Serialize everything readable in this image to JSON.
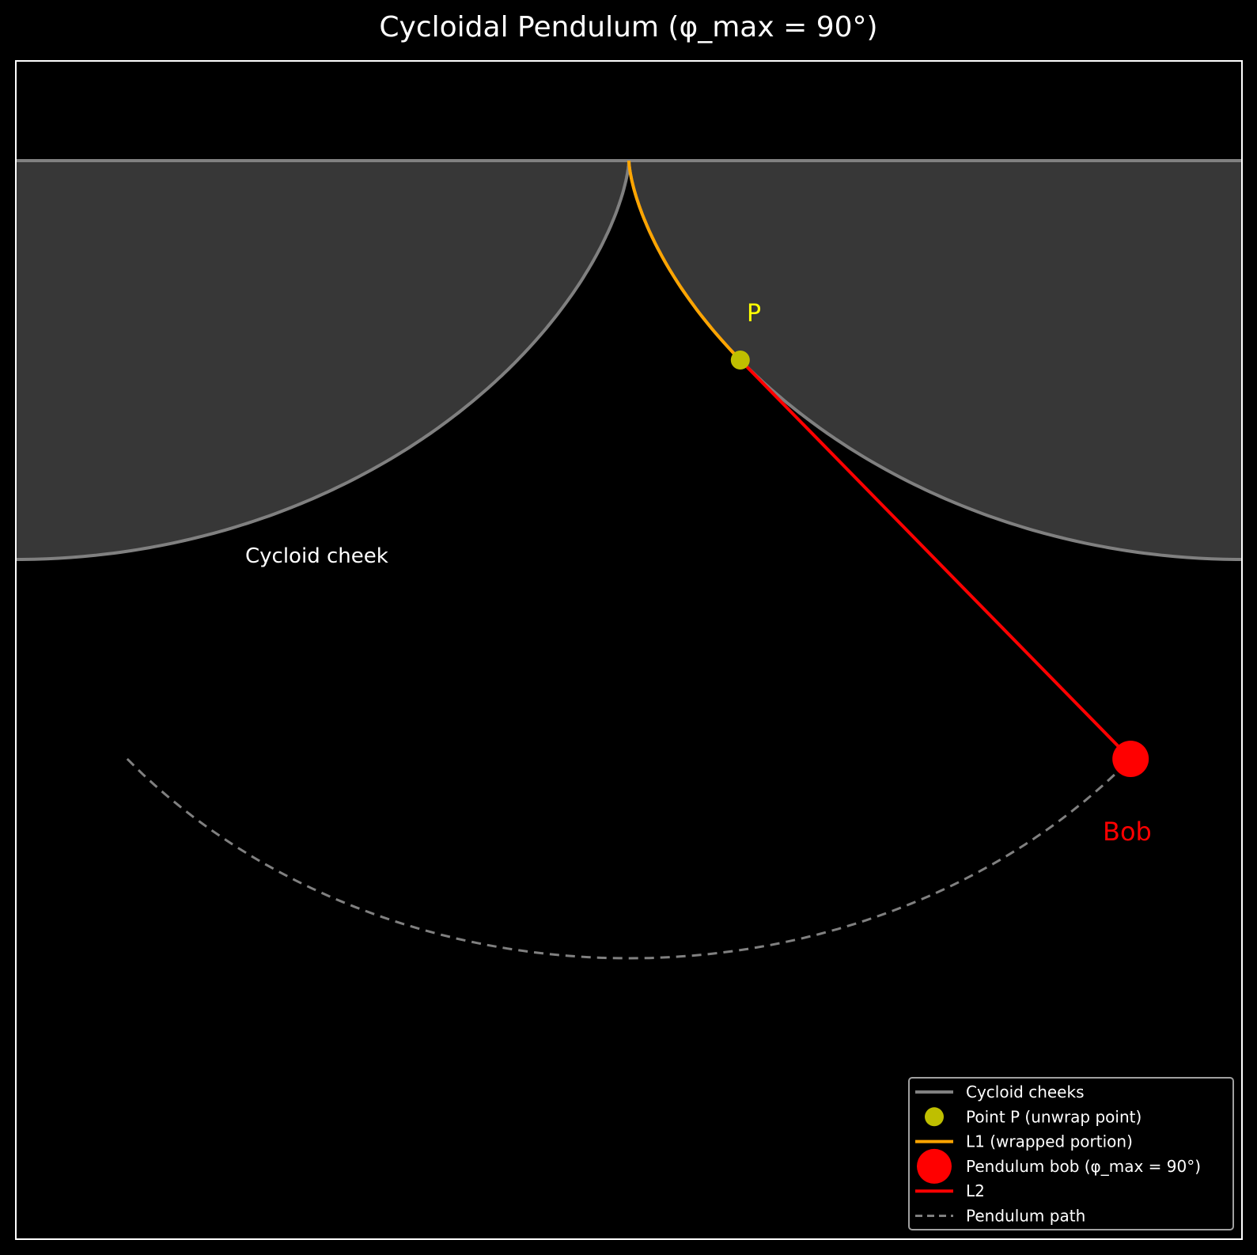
{
  "title": "Cycloidal Pendulum (φ_max = 90°)",
  "labels": {
    "cheek": "Cycloid cheek",
    "point_p": "P",
    "bob": "Bob"
  },
  "legend": [
    {
      "key": "cheeks",
      "label": "Cycloid cheeks",
      "color": "#808080",
      "marker": "line"
    },
    {
      "key": "point_p",
      "label": "Point P (unwrap point)",
      "color": "#bfbf00",
      "marker": "dot"
    },
    {
      "key": "l1",
      "label": "L1 (wrapped portion)",
      "color": "#ffa500",
      "marker": "line"
    },
    {
      "key": "bob",
      "label": "Pendulum bob (φ_max = 90°)",
      "color": "#ff0000",
      "marker": "big-dot"
    },
    {
      "key": "l2",
      "label": "L2",
      "color": "#ff0000",
      "marker": "line"
    },
    {
      "key": "path",
      "label": "Pendulum path",
      "color": "#808080",
      "marker": "dashed"
    }
  ],
  "colors": {
    "background": "#000000",
    "cheek_fill": "#373737",
    "cheek_line": "#808080",
    "l1": "#ffa500",
    "l2": "#ff0000",
    "point_p": "#bfbf00",
    "point_p_label": "#ffff00",
    "bob": "#ff0000",
    "path": "#808080",
    "frame": "#ffffff"
  },
  "chart_data": {
    "type": "diagram",
    "cycloid_radius": 1,
    "phi_max_deg": 90,
    "pendulum_length": 4
  }
}
